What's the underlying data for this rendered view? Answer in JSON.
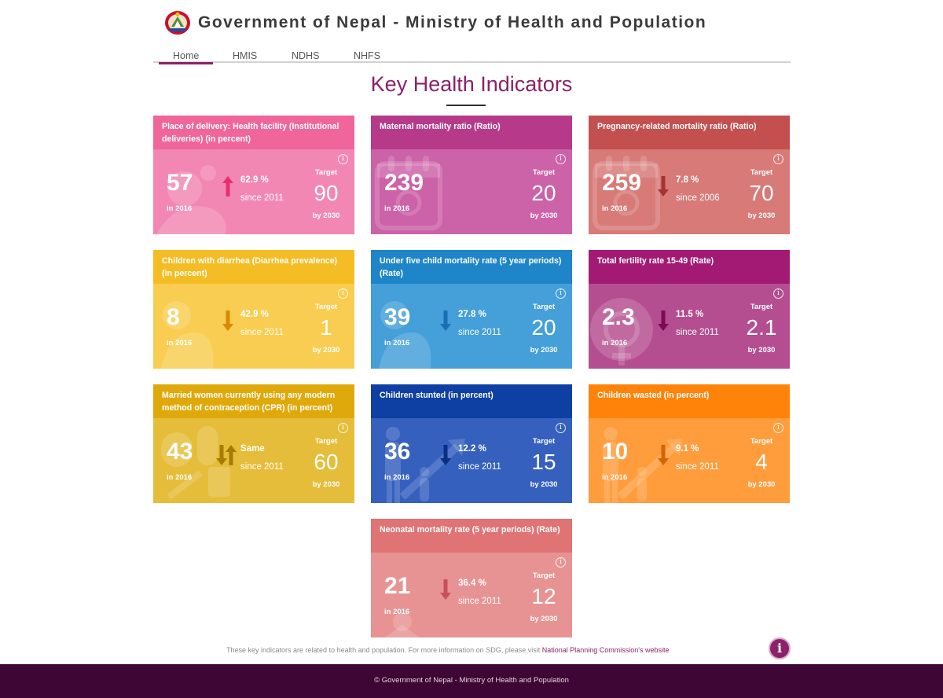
{
  "header": {
    "title": "Government of Nepal - Ministry of Health and Population"
  },
  "nav": {
    "items": [
      "Home",
      "HMIS",
      "NDHS",
      "NHFS"
    ]
  },
  "page_title": "Key Health Indicators",
  "cards": [
    {
      "title": "Place of delivery: Health facility (Institutional deliveries) (in percent)",
      "value": "57",
      "year": "in 2016",
      "change": "62.9 %",
      "since": "since 2011",
      "trend": "up",
      "target_label": "Target",
      "target": "90",
      "target_year": "by 2030",
      "head_color": "#f0669a",
      "body_color": "#f387b3",
      "icon": "delivery-icon"
    },
    {
      "title": "Maternal mortality ratio (Ratio)",
      "value": "239",
      "year": "in 2016",
      "change": "",
      "since": "",
      "trend": "none",
      "target_label": "Target",
      "target": "20",
      "target_year": "by 2030",
      "head_color": "#b73a8a",
      "body_color": "#cc62a8",
      "icon": "calendar-icon"
    },
    {
      "title": "Pregnancy-related mortality ratio (Ratio)",
      "value": "259",
      "year": "in 2016",
      "change": "7.8 %",
      "since": "since 2006",
      "trend": "down",
      "target_label": "Target",
      "target": "70",
      "target_year": "by 2030",
      "head_color": "#c44f4f",
      "body_color": "#d77a78",
      "icon": "calendar-icon"
    },
    {
      "title": "Children with diarrhea (Diarrhea prevalence) (in percent)",
      "value": "8",
      "year": "in 2016",
      "change": "42.9 %",
      "since": "since 2011",
      "trend": "down",
      "target_label": "Target",
      "target": "1",
      "target_year": "by 2030",
      "head_color": "#f4bd24",
      "body_color": "#f8cd52",
      "icon": "child-icon"
    },
    {
      "title": "Under five child mortality rate (5 year periods) (Rate)",
      "value": "39",
      "year": "in 2016",
      "change": "27.8 %",
      "since": "since 2011",
      "trend": "down",
      "target_label": "Target",
      "target": "20",
      "target_year": "by 2030",
      "head_color": "#1e85c9",
      "body_color": "#459fd9",
      "icon": "child-icon"
    },
    {
      "title": "Total fertility rate 15-49 (Rate)",
      "value": "2.3",
      "year": "in 2016",
      "change": "11.5 %",
      "since": "since 2011",
      "trend": "down",
      "target_label": "Target",
      "target": "2.1",
      "target_year": "by 2030",
      "head_color": "#a21a73",
      "body_color": "#b44e90",
      "icon": "female-symbol-icon"
    },
    {
      "title": "Married women currently using any modern method of contraception (CPR) (in percent)",
      "value": "43",
      "year": "in 2016",
      "change": "Same",
      "since": "since 2011",
      "trend": "both",
      "target_label": "Target",
      "target": "60",
      "target_year": "by 2030",
      "head_color": "#dfa90b",
      "body_color": "#e6bd3a",
      "icon": "contraception-icon"
    },
    {
      "title": "Children stunted (in percent)",
      "value": "36",
      "year": "in 2016",
      "change": "12.2 %",
      "since": "since 2011",
      "trend": "down",
      "target_label": "Target",
      "target": "15",
      "target_year": "by 2030",
      "head_color": "#0e3fa3",
      "body_color": "#3560be",
      "icon": "growth-icon"
    },
    {
      "title": "Children wasted (in percent)",
      "value": "10",
      "year": "in 2016",
      "change": "9.1 %",
      "since": "since 2011",
      "trend": "down",
      "target_label": "Target",
      "target": "4",
      "target_year": "by 2030",
      "head_color": "#ff8309",
      "body_color": "#ff9d3d",
      "icon": "growth-icon"
    },
    {
      "title": "Neonatal mortality rate (5 year periods) (Rate)",
      "value": "21",
      "year": "in 2016",
      "change": "36.4 %",
      "since": "since 2011",
      "trend": "down",
      "target_label": "Target",
      "target": "12",
      "target_year": "by 2030",
      "head_color": "#e07374",
      "body_color": "#e89393",
      "icon": "baby-icon"
    }
  ],
  "footnote": {
    "text": "These key indicators are related to health and population. For more information on SDG, please visit ",
    "link": "National Planning Commission's website"
  },
  "footer": {
    "text": "© Government of Nepal - Ministry of Health and Population"
  }
}
